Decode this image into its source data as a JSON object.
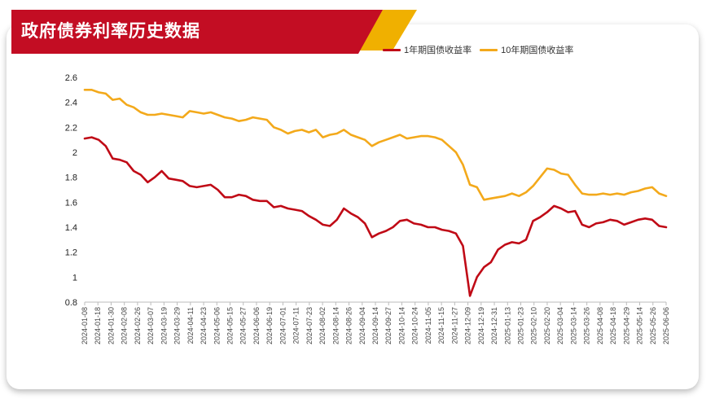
{
  "page": {
    "title": "政府债券利率历史数据"
  },
  "colors": {
    "title_red": "#c30d23",
    "title_gold": "#f0b000",
    "series_1y": "#c00a16",
    "series_10y": "#f3a91b"
  },
  "chart_data": {
    "type": "line",
    "title": "政府债券利率历史数据",
    "xlabel": "",
    "ylabel": "",
    "ylim": [
      0.8,
      2.6
    ],
    "yticks": [
      0.8,
      1,
      1.2,
      1.4,
      1.6,
      1.8,
      2,
      2.2,
      2.4,
      2.6
    ],
    "ytick_labels": [
      "0.8",
      "1",
      "1.2",
      "1.4",
      "1.6",
      "1.8",
      "2",
      "2.2",
      "2.4",
      "2.6"
    ],
    "grid": false,
    "legend_position": "top-right",
    "x_tick_labels": [
      "2024-01-08",
      "2024-01-18",
      "2024-01-30",
      "2024-02-08",
      "2024-02-26",
      "2024-03-07",
      "2024-03-19",
      "2024-03-29",
      "2024-04-11",
      "2024-04-23",
      "2024-05-06",
      "2024-05-15",
      "2024-05-27",
      "2024-06-06",
      "2024-06-19",
      "2024-07-01",
      "2024-07-11",
      "2024-07-23",
      "2024-08-02",
      "2024-08-14",
      "2024-08-26",
      "2024-09-04",
      "2024-09-14",
      "2024-09-27",
      "2024-10-14",
      "2024-10-24",
      "2024-11-05",
      "2024-11-15",
      "2024-11-27",
      "2024-12-09",
      "2024-12-19",
      "2024-12-31",
      "2025-01-13",
      "2025-01-23",
      "2025-02-10",
      "2025-02-20",
      "2025-03-04",
      "2025-03-14",
      "2025-03-26",
      "2025-04-08",
      "2025-04-18",
      "2025-04-29",
      "2025-05-14",
      "2025-05-26",
      "2025-06-06"
    ],
    "series": [
      {
        "name": "1年期国债收益率",
        "values": [
          2.11,
          2.12,
          2.1,
          2.05,
          1.95,
          1.94,
          1.92,
          1.85,
          1.82,
          1.76,
          1.8,
          1.85,
          1.79,
          1.78,
          1.77,
          1.73,
          1.72,
          1.73,
          1.74,
          1.7,
          1.64,
          1.64,
          1.66,
          1.65,
          1.62,
          1.61,
          1.61,
          1.56,
          1.57,
          1.55,
          1.54,
          1.53,
          1.49,
          1.46,
          1.42,
          1.41,
          1.46,
          1.55,
          1.51,
          1.48,
          1.43,
          1.32,
          1.35,
          1.37,
          1.4,
          1.45,
          1.46,
          1.43,
          1.42,
          1.4,
          1.4,
          1.38,
          1.37,
          1.35,
          1.25,
          0.85,
          1.0,
          1.08,
          1.12,
          1.22,
          1.26,
          1.28,
          1.27,
          1.3,
          1.45,
          1.48,
          1.52,
          1.57,
          1.55,
          1.52,
          1.53,
          1.42,
          1.4,
          1.43,
          1.44,
          1.46,
          1.45,
          1.42,
          1.44,
          1.46,
          1.47,
          1.46,
          1.41,
          1.4
        ]
      },
      {
        "name": "10年期国债收益率",
        "values": [
          2.5,
          2.5,
          2.48,
          2.47,
          2.42,
          2.43,
          2.38,
          2.36,
          2.32,
          2.3,
          2.3,
          2.31,
          2.3,
          2.29,
          2.28,
          2.33,
          2.32,
          2.31,
          2.32,
          2.3,
          2.28,
          2.27,
          2.25,
          2.26,
          2.28,
          2.27,
          2.26,
          2.2,
          2.18,
          2.15,
          2.17,
          2.18,
          2.16,
          2.18,
          2.12,
          2.14,
          2.15,
          2.18,
          2.14,
          2.12,
          2.1,
          2.05,
          2.08,
          2.1,
          2.12,
          2.14,
          2.11,
          2.12,
          2.13,
          2.13,
          2.12,
          2.1,
          2.05,
          2.0,
          1.9,
          1.74,
          1.72,
          1.62,
          1.63,
          1.64,
          1.65,
          1.67,
          1.65,
          1.68,
          1.73,
          1.8,
          1.87,
          1.86,
          1.83,
          1.82,
          1.74,
          1.67,
          1.66,
          1.66,
          1.67,
          1.66,
          1.67,
          1.66,
          1.68,
          1.69,
          1.71,
          1.72,
          1.67,
          1.65
        ]
      }
    ]
  }
}
